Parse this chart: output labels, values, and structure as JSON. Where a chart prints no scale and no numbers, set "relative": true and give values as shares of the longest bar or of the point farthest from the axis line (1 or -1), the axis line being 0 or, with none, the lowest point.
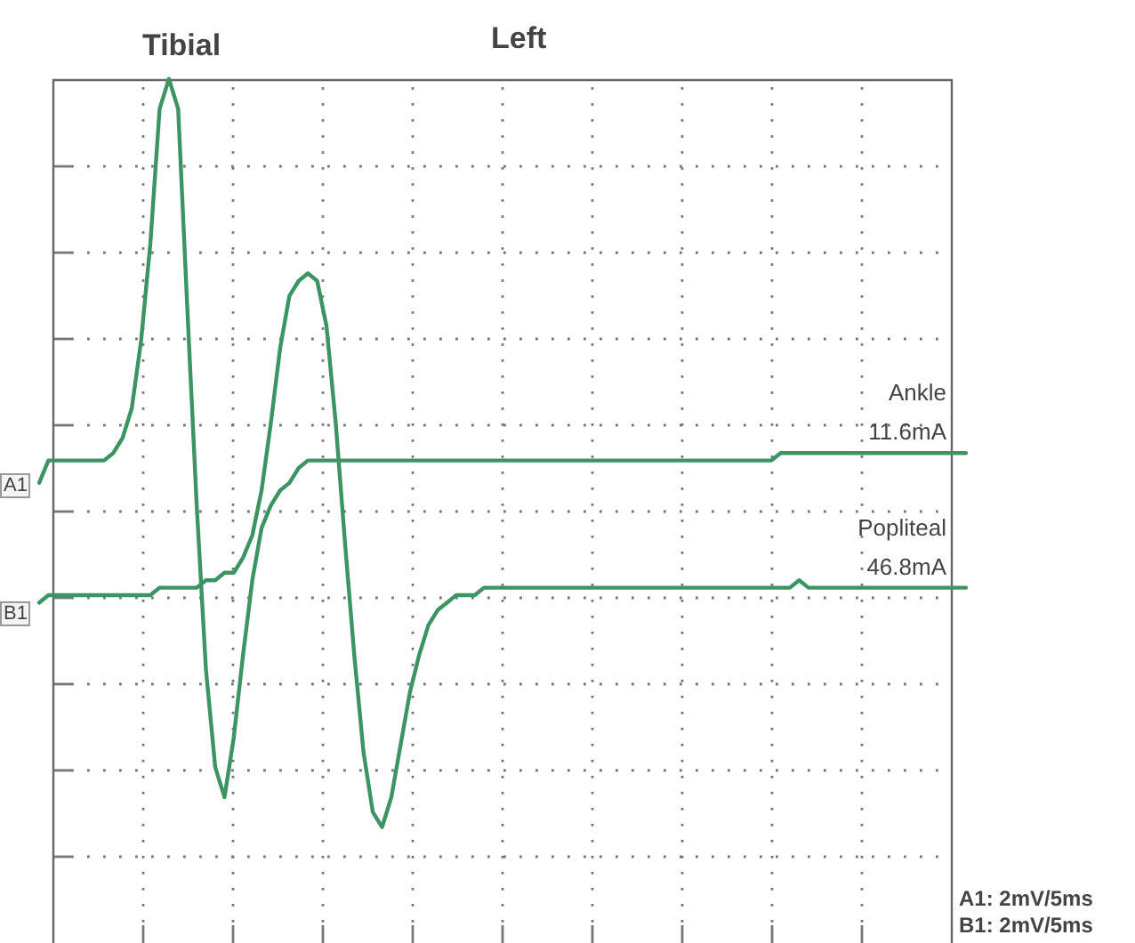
{
  "chart_data": {
    "type": "line",
    "title": "Tibial",
    "subtitle": "Left",
    "relative": true,
    "grid": true,
    "marker": "none",
    "categories": [
      null,
      null,
      null,
      null,
      null,
      null,
      null,
      null,
      null,
      null,
      null,
      null,
      null,
      null,
      null,
      null,
      null,
      null,
      null,
      null,
      null,
      null,
      null,
      null,
      null,
      null,
      null,
      null,
      null,
      null,
      null,
      null,
      null,
      null,
      null,
      null,
      null,
      null,
      null,
      null,
      null,
      null,
      null,
      null,
      null,
      null,
      null,
      null,
      null,
      null,
      null,
      null,
      null,
      null,
      null,
      null,
      null,
      null,
      null,
      null,
      null,
      null,
      null,
      null,
      null,
      null,
      null,
      null,
      null,
      null,
      null,
      null,
      null,
      null,
      null,
      null,
      null,
      null,
      null,
      null,
      null,
      null,
      null,
      null,
      null,
      null,
      null,
      null,
      null,
      null,
      null,
      null,
      null,
      null,
      null,
      null,
      null,
      null,
      null,
      null,
      null
    ],
    "series": [
      {
        "name": "Ankle",
        "color": "#3c9463",
        "values": [
          0.46,
          0.49,
          0.49,
          0.49,
          0.49,
          0.49,
          0.49,
          0.49,
          0.5,
          0.52,
          0.56,
          0.65,
          0.78,
          0.96,
          1,
          0.96,
          0.69,
          0.43,
          0.21,
          0.08,
          0.04,
          0.12,
          0.23,
          0.33,
          0.4,
          0.43,
          0.45,
          0.46,
          0.48,
          0.49,
          0.49,
          0.49,
          0.49,
          0.49,
          0.49,
          0.49,
          0.49,
          0.49,
          0.49,
          0.49,
          0.49,
          0.49,
          0.49,
          0.49,
          0.49,
          0.49,
          0.49,
          0.49,
          0.49,
          0.49,
          0.49,
          0.49,
          0.49,
          0.49,
          0.49,
          0.49,
          0.49,
          0.49,
          0.49,
          0.49,
          0.49,
          0.49,
          0.49,
          0.49,
          0.49,
          0.49,
          0.49,
          0.49,
          0.49,
          0.49,
          0.49,
          0.49,
          0.49,
          0.49,
          0.49,
          0.49,
          0.49,
          0.49,
          0.49,
          0.49,
          0.5,
          0.5,
          0.5,
          0.5,
          0.5,
          0.5,
          0.5,
          0.5,
          0.5,
          0.5,
          0.5,
          0.5,
          0.5,
          0.5,
          0.5,
          0.5,
          0.5,
          0.5,
          0.5,
          0.5,
          0.5
        ]
      },
      {
        "name": "Popliteal",
        "color": "#3c9463",
        "values": [
          0.3,
          0.31,
          0.31,
          0.31,
          0.31,
          0.31,
          0.31,
          0.31,
          0.31,
          0.31,
          0.31,
          0.31,
          0.31,
          0.32,
          0.32,
          0.32,
          0.32,
          0.32,
          0.33,
          0.33,
          0.34,
          0.34,
          0.36,
          0.39,
          0.45,
          0.54,
          0.64,
          0.71,
          0.73,
          0.74,
          0.73,
          0.67,
          0.54,
          0.38,
          0.23,
          0.1,
          0.02,
          0,
          0.04,
          0.11,
          0.18,
          0.23,
          0.27,
          0.29,
          0.3,
          0.31,
          0.31,
          0.31,
          0.32,
          0.32,
          0.32,
          0.32,
          0.32,
          0.32,
          0.32,
          0.32,
          0.32,
          0.32,
          0.32,
          0.32,
          0.32,
          0.32,
          0.32,
          0.32,
          0.32,
          0.32,
          0.32,
          0.32,
          0.32,
          0.32,
          0.32,
          0.32,
          0.32,
          0.32,
          0.32,
          0.32,
          0.32,
          0.32,
          0.32,
          0.32,
          0.32,
          0.32,
          0.33,
          0.32,
          0.32,
          0.32,
          0.32,
          0.32,
          0.32,
          0.32,
          0.32,
          0.32,
          0.32,
          0.32,
          0.32,
          0.32,
          0.32,
          0.32,
          0.32,
          0.32,
          0.32
        ]
      }
    ],
    "annotations": [
      "A1",
      "B1",
      "11.6mA",
      "46.8mA",
      "A1: 2mV/5ms",
      "B1: 2mV/5ms"
    ]
  }
}
